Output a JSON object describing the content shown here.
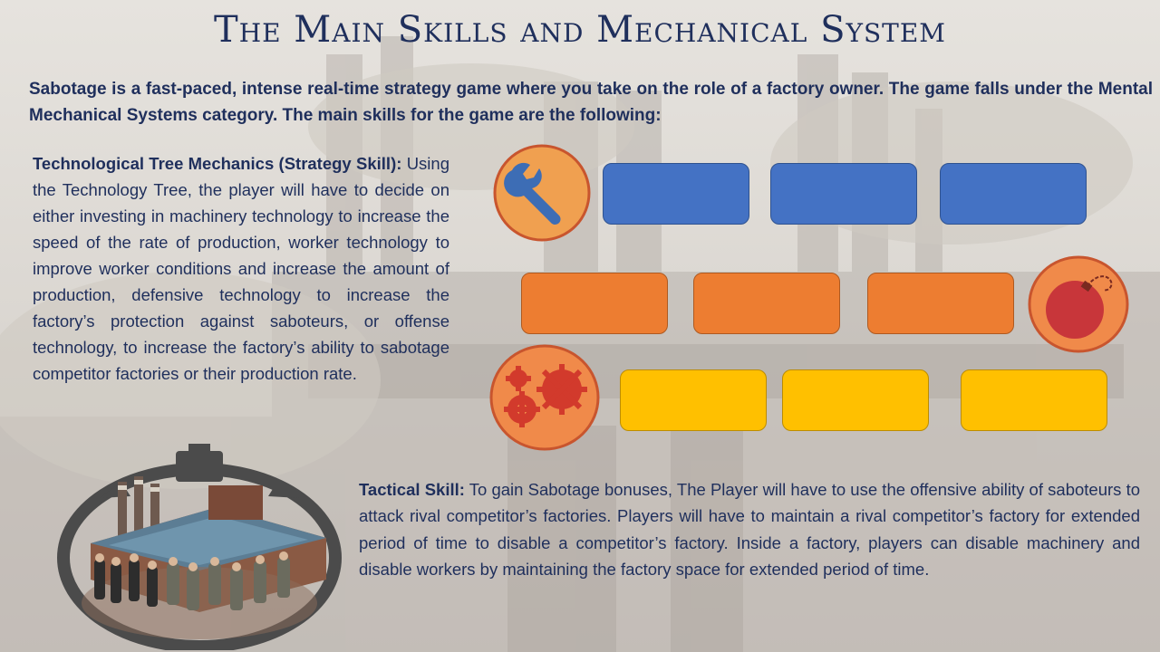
{
  "slide": {
    "title": "The Main Skills and Mechanical System",
    "intro": "Sabotage is a fast-paced, intense real-time strategy game where you take on the role of a factory owner.  The game falls under the Mental Mechanical Systems category.  The main skills for the game are the following:",
    "tech_heading": "Technological Tree Mechanics (Strategy Skill):",
    "tech_body": "Using the Technology Tree, the player will have to decide on either investing in machinery technology to increase the speed of the rate of production, worker technology to improve worker conditions and increase the amount of production, defensive technology to increase the factory’s protection against saboteurs, or offense technology, to increase the factory’s ability to sabotage competitor factories or their production rate.",
    "tactical_heading": "Tactical Skill:",
    "tactical_body": " To gain Sabotage bonuses, The Player will have to use the offensive ability of saboteurs to attack rival competitor’s factories.  Players will have to maintain a rival competitor’s factory for extended period of time to disable a competitor’s factory.  Inside a factory, players can disable machinery and disable workers by maintaining the factory space for extended period of time."
  },
  "icons": [
    "wrench-icon",
    "bomb-icon",
    "gears-icon"
  ],
  "colors": {
    "title": "#1f2f5c",
    "blue": "#4472c4",
    "orange": "#ed7d31",
    "yellow": "#ffc000",
    "icon_circle": "#f0a050",
    "icon_border": "#c84a2a",
    "icon_glyph_blue": "#3d6db5",
    "icon_glyph_red": "#d23a2c"
  }
}
